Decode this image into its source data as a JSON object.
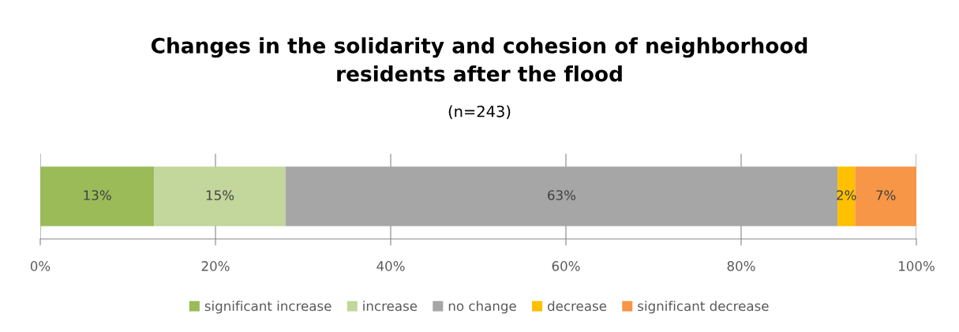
{
  "chart_data": {
    "type": "bar",
    "orientation": "horizontal",
    "stacked": true,
    "title": "Changes in the solidarity and cohesion of neighborhood\nresidents after the flood",
    "subtitle": "(n=243)",
    "categories": [
      null
    ],
    "series": [
      {
        "name": "significant increase",
        "color": "#9bbb59",
        "values": [
          13
        ],
        "value_labels": [
          "13%"
        ]
      },
      {
        "name": "increase",
        "color": "#c3d69b",
        "values": [
          15
        ],
        "value_labels": [
          "15%"
        ]
      },
      {
        "name": "no change",
        "color": "#a6a6a6",
        "values": [
          63
        ],
        "value_labels": [
          "63%"
        ]
      },
      {
        "name": "decrease",
        "color": "#ffc000",
        "values": [
          2
        ],
        "value_labels": [
          "2%"
        ]
      },
      {
        "name": "significant decrease",
        "color": "#f79646",
        "values": [
          7
        ],
        "value_labels": [
          "7%"
        ]
      }
    ],
    "xlim": [
      0,
      100
    ],
    "xticks": [
      {
        "value": 0,
        "label": "0%"
      },
      {
        "value": 20,
        "label": "20%"
      },
      {
        "value": 40,
        "label": "40%"
      },
      {
        "value": 60,
        "label": "60%"
      },
      {
        "value": 80,
        "label": "80%"
      },
      {
        "value": 100,
        "label": "100%"
      }
    ],
    "grid": "x",
    "legend": "bottom"
  }
}
